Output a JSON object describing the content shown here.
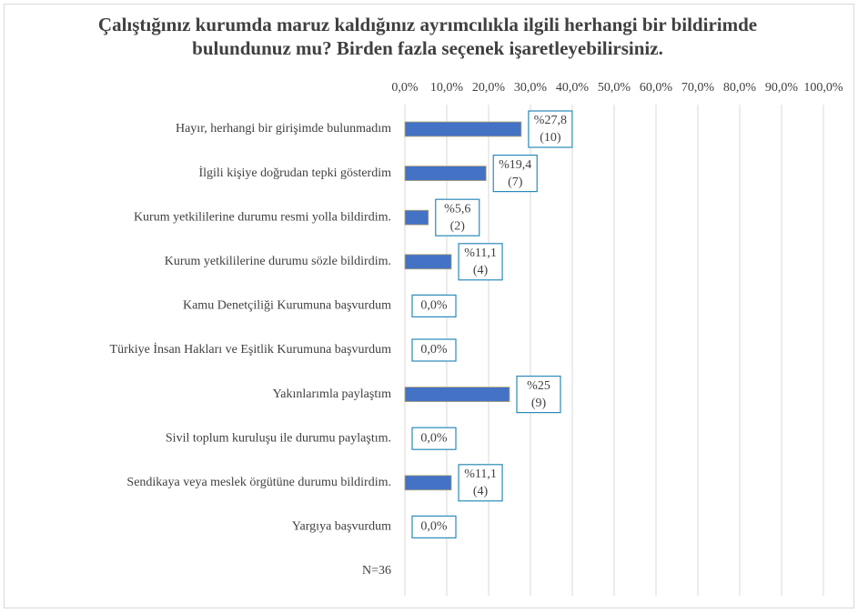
{
  "chart_data": {
    "type": "barh",
    "title": "Çalıştığınız kurumda maruz kaldığınız ayrımcılıkla ilgili herhangi bir bildirimde bulundunuz mu? Birden fazla seçenek işaretleyebilirsiniz.",
    "categories": [
      "Hayır, herhangi bir girişimde bulunmadım",
      "İlgili kişiye doğrudan tepki gösterdim",
      "Kurum yetkililerine durumu resmi yolla bildirdim.",
      "Kurum yetkililerine durumu sözle bildirdim.",
      "Kamu Denetçiliği Kurumuna başvurdum",
      "Türkiye İnsan Hakları ve Eşitlik Kurumuna başvurdum",
      "Yakınlarımla paylaştım",
      "Sivil toplum kuruluşu ile durumu paylaştım.",
      "Sendikaya veya meslek örgütüne durumu bildirdim.",
      "Yargıya başvurdum"
    ],
    "values": [
      27.8,
      19.4,
      5.6,
      11.1,
      0,
      0,
      25,
      0,
      11.1,
      0
    ],
    "value_labels": [
      "%27,8",
      "%19,4",
      "%5,6",
      "%11,1",
      "0,0%",
      "0,0%",
      "%25",
      "0,0%",
      "%11,1",
      "0,0%"
    ],
    "count_labels": [
      "(10)",
      "(7)",
      "(2)",
      "(4)",
      null,
      null,
      "(9)",
      null,
      "(4)",
      null
    ],
    "note": "N=36",
    "color": "#4472c4",
    "xlim": [
      0,
      100
    ],
    "xticks": [
      {
        "value": 0,
        "label": "0,0%"
      },
      {
        "value": 10,
        "label": "10,0%"
      },
      {
        "value": 20,
        "label": "20,0%"
      },
      {
        "value": 30,
        "label": "30,0%"
      },
      {
        "value": 40,
        "label": "40,0%"
      },
      {
        "value": 50,
        "label": "50,0%"
      },
      {
        "value": 60,
        "label": "60,0%"
      },
      {
        "value": 70,
        "label": "70,0%"
      },
      {
        "value": 80,
        "label": "80,0%"
      },
      {
        "value": 90,
        "label": "90,0%"
      },
      {
        "value": 100,
        "label": "100,0%"
      }
    ],
    "grid": true
  }
}
